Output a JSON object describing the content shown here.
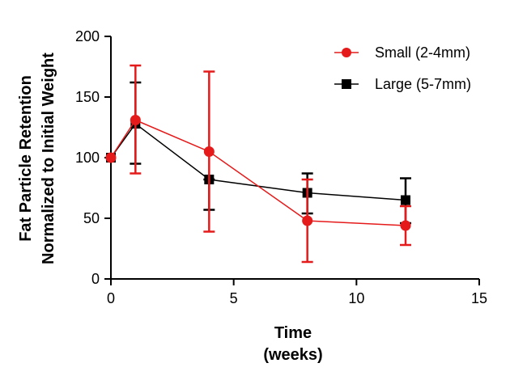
{
  "chart_data": {
    "type": "line",
    "title": "",
    "xlabel_lines": [
      "Time",
      "(weeks)"
    ],
    "ylabel_lines": [
      "Fat Particle Retention",
      "Normalized to Initial Weight"
    ],
    "xlim": [
      0,
      15
    ],
    "ylim": [
      0,
      200
    ],
    "xticks": [
      0,
      5,
      10,
      15
    ],
    "yticks": [
      0,
      50,
      100,
      150,
      200
    ],
    "grid": false,
    "legend_position": "top-right",
    "series": [
      {
        "name": "Small (2-4mm)",
        "color": "#e51a1a",
        "marker": "circle",
        "x": [
          0,
          1,
          4,
          8,
          12
        ],
        "y": [
          100,
          131,
          105,
          48,
          44
        ],
        "err_low": [
          100,
          87,
          39,
          14,
          28
        ],
        "err_high": [
          100,
          176,
          171,
          82,
          60
        ]
      },
      {
        "name": "Large (5-7mm)",
        "color": "#000000",
        "marker": "square",
        "x": [
          0,
          1,
          4,
          8,
          12
        ],
        "y": [
          100,
          128,
          82,
          71,
          65
        ],
        "err_low": [
          100,
          95,
          57,
          54,
          46
        ],
        "err_high": [
          100,
          162,
          82,
          87,
          83
        ]
      }
    ]
  }
}
